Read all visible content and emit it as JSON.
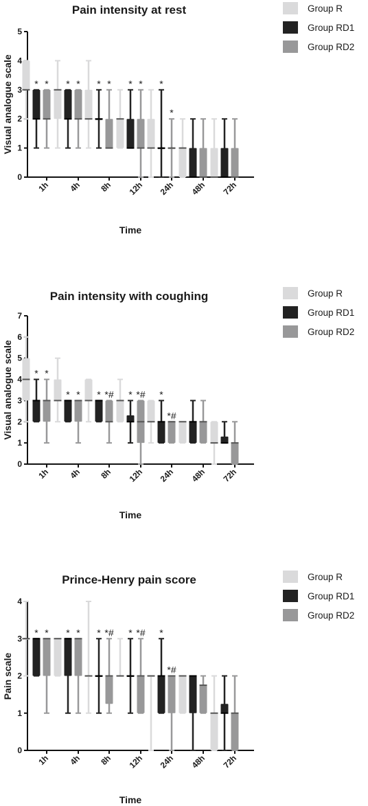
{
  "figure": {
    "group_colors": {
      "Group R": "#dadadb",
      "Group RD1": "#222222",
      "Group RD2": "#989899"
    },
    "legend": [
      "Group R",
      "Group RD1",
      "Group RD2"
    ]
  },
  "chart_data": [
    {
      "type": "boxplot",
      "title": "Pain intensity at rest",
      "xlabel": "Time",
      "ylabel": "Visual analogue scale",
      "ylim": [
        0,
        5
      ],
      "yticks": [
        0,
        1,
        2,
        3,
        4,
        5
      ],
      "categories": [
        "1h",
        "4h",
        "8h",
        "12h",
        "24h",
        "48h",
        "72h"
      ],
      "legend": "right",
      "series": [
        {
          "name": "Group R",
          "boxes": [
            {
              "min": 2,
              "q1": 3,
              "median": 3,
              "q3": 4,
              "max": 4
            },
            {
              "min": 1,
              "q1": 2,
              "median": 3,
              "q3": 3,
              "max": 4
            },
            {
              "min": 1,
              "q1": 2,
              "median": 2,
              "q3": 3,
              "max": 4
            },
            {
              "min": 1,
              "q1": 1,
              "median": 2,
              "q3": 2,
              "max": 3
            },
            {
              "min": 0,
              "q1": 1,
              "median": 1,
              "q3": 2,
              "max": 3
            },
            {
              "min": 0,
              "q1": 0,
              "median": 1,
              "q3": 1,
              "max": 2
            },
            {
              "min": 0,
              "q1": 0,
              "median": 0,
              "q3": 1,
              "max": 2
            }
          ]
        },
        {
          "name": "Group RD1",
          "boxes": [
            {
              "min": 1,
              "q1": 2,
              "median": 2,
              "q3": 3,
              "max": 3
            },
            {
              "min": 1,
              "q1": 2,
              "median": 2,
              "q3": 3,
              "max": 3
            },
            {
              "min": 1,
              "q1": 2,
              "median": 2,
              "q3": 2,
              "max": 3
            },
            {
              "min": 1,
              "q1": 1,
              "median": 1,
              "q3": 2,
              "max": 3
            },
            {
              "min": 0,
              "q1": 1,
              "median": 1,
              "q3": 1,
              "max": 3
            },
            {
              "min": 0,
              "q1": 0,
              "median": 0,
              "q3": 1,
              "max": 2
            },
            {
              "min": 0,
              "q1": 0,
              "median": 0,
              "q3": 1,
              "max": 2
            }
          ]
        },
        {
          "name": "Group RD2",
          "boxes": [
            {
              "min": 1,
              "q1": 2,
              "median": 2,
              "q3": 3,
              "max": 3
            },
            {
              "min": 1,
              "q1": 2,
              "median": 2,
              "q3": 3,
              "max": 3
            },
            {
              "min": 1,
              "q1": 1,
              "median": 1,
              "q3": 2,
              "max": 3
            },
            {
              "min": 0,
              "q1": 1,
              "median": 1,
              "q3": 2,
              "max": 3
            },
            {
              "min": 0,
              "q1": 1,
              "median": 1,
              "q3": 1,
              "max": 2
            },
            {
              "min": 0,
              "q1": 0,
              "median": 0,
              "q3": 1,
              "max": 2
            },
            {
              "min": 0,
              "q1": 0,
              "median": 0,
              "q3": 1,
              "max": 2
            }
          ]
        }
      ],
      "annotations": [
        {
          "category": "1h",
          "group": "Group RD1",
          "text": "*"
        },
        {
          "category": "1h",
          "group": "Group RD2",
          "text": "*"
        },
        {
          "category": "4h",
          "group": "Group RD1",
          "text": "*"
        },
        {
          "category": "4h",
          "group": "Group RD2",
          "text": "*"
        },
        {
          "category": "8h",
          "group": "Group RD1",
          "text": "*"
        },
        {
          "category": "8h",
          "group": "Group RD2",
          "text": "*"
        },
        {
          "category": "12h",
          "group": "Group RD1",
          "text": "*"
        },
        {
          "category": "12h",
          "group": "Group RD2",
          "text": "*"
        },
        {
          "category": "24h",
          "group": "Group RD1",
          "text": "*"
        },
        {
          "category": "24h",
          "group": "Group RD2",
          "text": "*"
        }
      ]
    },
    {
      "type": "boxplot",
      "title": "Pain intensity with coughing",
      "xlabel": "Time",
      "ylabel": "Visual analogue scale",
      "ylim": [
        0,
        7
      ],
      "yticks": [
        0,
        1,
        2,
        3,
        4,
        5,
        6,
        7
      ],
      "categories": [
        "1h",
        "4h",
        "8h",
        "12h",
        "24h",
        "48h",
        "72h"
      ],
      "legend": "right",
      "series": [
        {
          "name": "Group R",
          "boxes": [
            {
              "min": 2,
              "q1": 3,
              "median": 4,
              "q3": 5,
              "max": 6
            },
            {
              "min": 2,
              "q1": 3,
              "median": 3,
              "q3": 4,
              "max": 5
            },
            {
              "min": 2,
              "q1": 3,
              "median": 3,
              "q3": 4,
              "max": 4
            },
            {
              "min": 2,
              "q1": 2,
              "median": 3,
              "q3": 3,
              "max": 4
            },
            {
              "min": 1,
              "q1": 2,
              "median": 2,
              "q3": 3,
              "max": 3
            },
            {
              "min": 1,
              "q1": 1,
              "median": 2,
              "q3": 2,
              "max": 2
            },
            {
              "min": 0,
              "q1": 1,
              "median": 1,
              "q3": 2,
              "max": 2
            }
          ]
        },
        {
          "name": "Group RD1",
          "boxes": [
            {
              "min": 2,
              "q1": 2,
              "median": 3,
              "q3": 3,
              "max": 4
            },
            {
              "min": 2,
              "q1": 2,
              "median": 3,
              "q3": 3,
              "max": 3
            },
            {
              "min": 2,
              "q1": 2,
              "median": 3,
              "q3": 3,
              "max": 3
            },
            {
              "min": 1,
              "q1": 2,
              "median": 2,
              "q3": 2.3,
              "max": 3
            },
            {
              "min": 1,
              "q1": 1,
              "median": 2,
              "q3": 2,
              "max": 3
            },
            {
              "min": 1,
              "q1": 1,
              "median": 2,
              "q3": 2,
              "max": 3
            },
            {
              "min": 1,
              "q1": 1,
              "median": 1,
              "q3": 1.3,
              "max": 2
            }
          ]
        },
        {
          "name": "Group RD2",
          "boxes": [
            {
              "min": 1,
              "q1": 2,
              "median": 3,
              "q3": 3,
              "max": 4
            },
            {
              "min": 1,
              "q1": 2,
              "median": 3,
              "q3": 3,
              "max": 3
            },
            {
              "min": 1,
              "q1": 2,
              "median": 2,
              "q3": 3,
              "max": 3
            },
            {
              "min": 0,
              "q1": 1,
              "median": 2,
              "q3": 3,
              "max": 3
            },
            {
              "min": 1,
              "q1": 1,
              "median": 2,
              "q3": 2,
              "max": 2
            },
            {
              "min": 1,
              "q1": 1,
              "median": 2,
              "q3": 2,
              "max": 3
            },
            {
              "min": 0,
              "q1": 0,
              "median": 1,
              "q3": 1,
              "max": 2
            }
          ]
        }
      ],
      "annotations": [
        {
          "category": "1h",
          "group": "Group RD1",
          "text": "*"
        },
        {
          "category": "1h",
          "group": "Group RD2",
          "text": "*"
        },
        {
          "category": "4h",
          "group": "Group RD1",
          "text": "*"
        },
        {
          "category": "4h",
          "group": "Group RD2",
          "text": "*"
        },
        {
          "category": "8h",
          "group": "Group RD1",
          "text": "*"
        },
        {
          "category": "8h",
          "group": "Group RD2",
          "text": "*#"
        },
        {
          "category": "12h",
          "group": "Group RD1",
          "text": "*"
        },
        {
          "category": "12h",
          "group": "Group RD2",
          "text": "*#"
        },
        {
          "category": "24h",
          "group": "Group RD1",
          "text": "*"
        },
        {
          "category": "24h",
          "group": "Group RD2",
          "text": "*#"
        }
      ]
    },
    {
      "type": "boxplot",
      "title": "Prince-Henry pain score",
      "xlabel": "Time",
      "ylabel": "Pain scale",
      "ylim": [
        0,
        4
      ],
      "yticks": [
        0,
        1,
        2,
        3,
        4
      ],
      "categories": [
        "1h",
        "4h",
        "8h",
        "12h",
        "24h",
        "48h",
        "72h"
      ],
      "legend": "right",
      "series": [
        {
          "name": "Group R",
          "boxes": [
            {
              "min": 2,
              "q1": 3,
              "median": 3,
              "q3": 3,
              "max": 4
            },
            {
              "min": 2,
              "q1": 2,
              "median": 3,
              "q3": 3,
              "max": 3
            },
            {
              "min": 1,
              "q1": 2,
              "median": 2,
              "q3": 2,
              "max": 4
            },
            {
              "min": 2,
              "q1": 2,
              "median": 2,
              "q3": 2,
              "max": 3
            },
            {
              "min": 0,
              "q1": 2,
              "median": 2,
              "q3": 2,
              "max": 2
            },
            {
              "min": 1,
              "q1": 1,
              "median": 2,
              "q3": 2,
              "max": 2
            },
            {
              "min": 0,
              "q1": 0,
              "median": 1,
              "q3": 1,
              "max": 2
            }
          ]
        },
        {
          "name": "Group RD1",
          "boxes": [
            {
              "min": 2,
              "q1": 2,
              "median": 3,
              "q3": 3,
              "max": 3
            },
            {
              "min": 1,
              "q1": 2,
              "median": 3,
              "q3": 3,
              "max": 3
            },
            {
              "min": 1,
              "q1": 2,
              "median": 2,
              "q3": 2,
              "max": 3
            },
            {
              "min": 1,
              "q1": 2,
              "median": 2,
              "q3": 2,
              "max": 3
            },
            {
              "min": 1,
              "q1": 1,
              "median": 2,
              "q3": 2,
              "max": 3
            },
            {
              "min": 0,
              "q1": 1,
              "median": 2,
              "q3": 2,
              "max": 2
            },
            {
              "min": 0,
              "q1": 1,
              "median": 1,
              "q3": 1.25,
              "max": 2
            }
          ]
        },
        {
          "name": "Group RD2",
          "boxes": [
            {
              "min": 1,
              "q1": 2,
              "median": 3,
              "q3": 3,
              "max": 3
            },
            {
              "min": 1,
              "q1": 2,
              "median": 3,
              "q3": 3,
              "max": 3
            },
            {
              "min": 1,
              "q1": 1.25,
              "median": 2,
              "q3": 2,
              "max": 3
            },
            {
              "min": 1,
              "q1": 1,
              "median": 2,
              "q3": 2,
              "max": 3
            },
            {
              "min": 0,
              "q1": 1,
              "median": 2,
              "q3": 2,
              "max": 2
            },
            {
              "min": 1,
              "q1": 1,
              "median": 1.75,
              "q3": 1.75,
              "max": 2
            },
            {
              "min": 0,
              "q1": 0,
              "median": 1,
              "q3": 1,
              "max": 2
            }
          ]
        }
      ],
      "annotations": [
        {
          "category": "1h",
          "group": "Group RD1",
          "text": "*"
        },
        {
          "category": "1h",
          "group": "Group RD2",
          "text": "*"
        },
        {
          "category": "4h",
          "group": "Group RD1",
          "text": "*"
        },
        {
          "category": "4h",
          "group": "Group RD2",
          "text": "*"
        },
        {
          "category": "8h",
          "group": "Group RD1",
          "text": "*"
        },
        {
          "category": "8h",
          "group": "Group RD2",
          "text": "*#"
        },
        {
          "category": "12h",
          "group": "Group RD1",
          "text": "*"
        },
        {
          "category": "12h",
          "group": "Group RD2",
          "text": "*#"
        },
        {
          "category": "24h",
          "group": "Group RD1",
          "text": "*"
        },
        {
          "category": "24h",
          "group": "Group RD2",
          "text": "*#"
        }
      ]
    }
  ]
}
